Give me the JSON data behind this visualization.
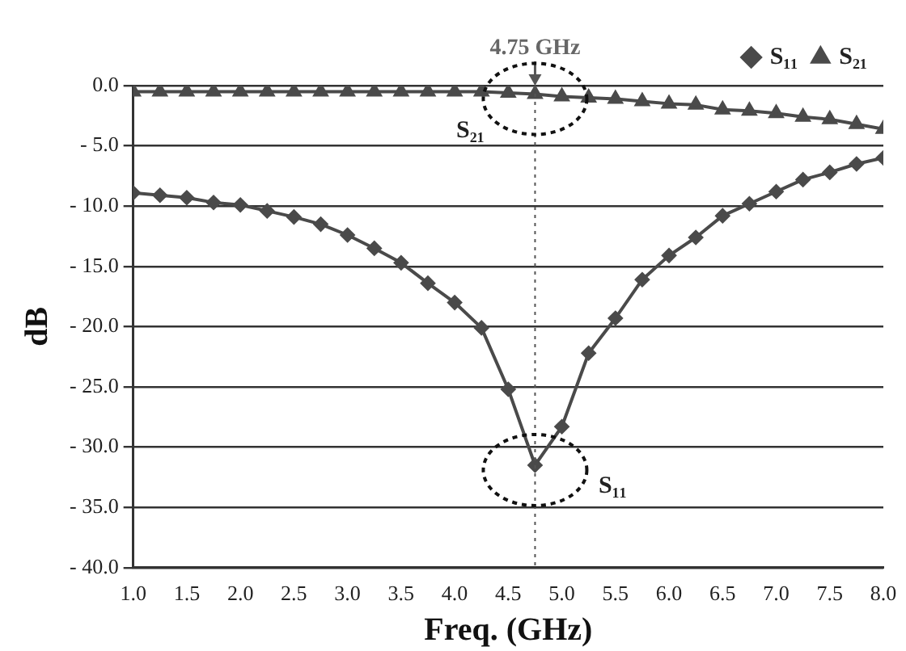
{
  "chart_data": {
    "type": "line",
    "xlabel": "Freq. (GHz)",
    "ylabel": "dB",
    "x": [
      1.0,
      1.25,
      1.5,
      1.75,
      2.0,
      2.25,
      2.5,
      2.75,
      3.0,
      3.25,
      3.5,
      3.75,
      4.0,
      4.25,
      4.5,
      4.75,
      5.0,
      5.25,
      5.5,
      5.75,
      6.0,
      6.25,
      6.5,
      6.75,
      7.0,
      7.25,
      7.5,
      7.75,
      8.0
    ],
    "series": [
      {
        "name": "S₁₁",
        "color": "#4a4a4a",
        "marker": "diamond",
        "values": [
          -8.9,
          -9.1,
          -9.3,
          -9.7,
          -9.9,
          -10.4,
          -10.9,
          -11.5,
          -12.4,
          -13.5,
          -14.7,
          -16.4,
          -18.0,
          -20.1,
          -25.2,
          -31.5,
          -28.3,
          -22.2,
          -19.3,
          -16.1,
          -14.1,
          -12.6,
          -10.8,
          -9.8,
          -8.8,
          -7.8,
          -7.2,
          -6.5,
          -6.0
        ]
      },
      {
        "name": "S₂₁",
        "color": "#4a4a4a",
        "marker": "triangle",
        "values": [
          -0.5,
          -0.5,
          -0.5,
          -0.5,
          -0.5,
          -0.5,
          -0.5,
          -0.5,
          -0.5,
          -0.5,
          -0.5,
          -0.5,
          -0.5,
          -0.5,
          -0.6,
          -0.7,
          -0.9,
          -1.0,
          -1.1,
          -1.3,
          -1.5,
          -1.6,
          -2.0,
          -2.1,
          -2.3,
          -2.6,
          -2.8,
          -3.2,
          -3.6
        ]
      }
    ],
    "xlim": [
      1.0,
      8.0
    ],
    "xticks": [
      {
        "value": 1,
        "label": "1.0"
      },
      1.5,
      {
        "value": 2,
        "label": "2.0"
      },
      2.5,
      {
        "value": 3,
        "label": "3.0"
      },
      3.5,
      {
        "value": 4,
        "label": "4.0"
      },
      4.5,
      {
        "value": 5,
        "label": "5.0"
      },
      5.5,
      {
        "value": 6,
        "label": "6.0"
      },
      6.5,
      {
        "value": 7,
        "label": "7.0"
      },
      7.5,
      {
        "value": 8,
        "label": "8.0"
      }
    ],
    "ylim": [
      -40,
      0
    ],
    "yticks": [
      {
        "value": 0,
        "label": "0.0"
      },
      {
        "value": -5,
        "label": "- 5.0"
      },
      {
        "value": -10,
        "label": "- 10.0"
      },
      {
        "value": -15,
        "label": "- 15.0"
      },
      {
        "value": -20,
        "label": "- 20.0"
      },
      {
        "value": -25,
        "label": "- 25.0"
      },
      {
        "value": -30,
        "label": "- 30.0"
      },
      {
        "value": -35,
        "label": "- 35.0"
      },
      {
        "value": -40,
        "label": "- 40.0"
      }
    ],
    "grid": "y",
    "legend": "top right",
    "line_style": "solid",
    "ref_lines": [
      {
        "axis": "x",
        "value": 4.75,
        "label": "4.75 GHz",
        "color": "#555555",
        "line_style": "dotted"
      }
    ],
    "annotations": [
      "S₁₁",
      "S₂₁"
    ]
  }
}
